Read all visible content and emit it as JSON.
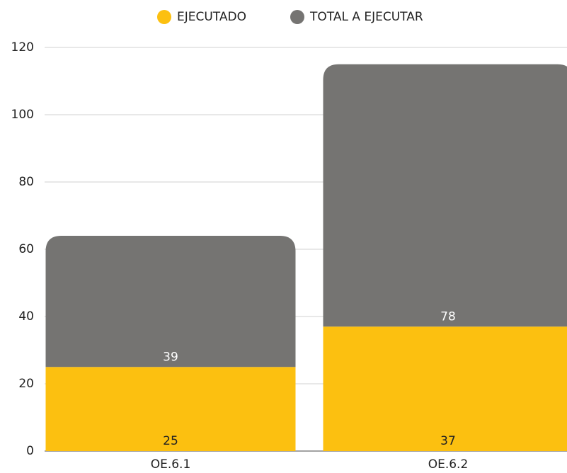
{
  "chart_data": {
    "type": "stacked_bar",
    "categories": [
      "OE.6.1",
      "OE.6.2"
    ],
    "series": [
      {
        "name": "EJECUTADO",
        "color": "#fcc010",
        "values": [
          25,
          37
        ]
      },
      {
        "name": "TOTAL A EJECUTAR",
        "color": "#757472",
        "values": [
          39,
          78
        ]
      }
    ],
    "ylim": [
      0,
      120
    ],
    "yticks": [
      0,
      20,
      40,
      60,
      80,
      100,
      120
    ],
    "grid": true,
    "legend": "top"
  }
}
